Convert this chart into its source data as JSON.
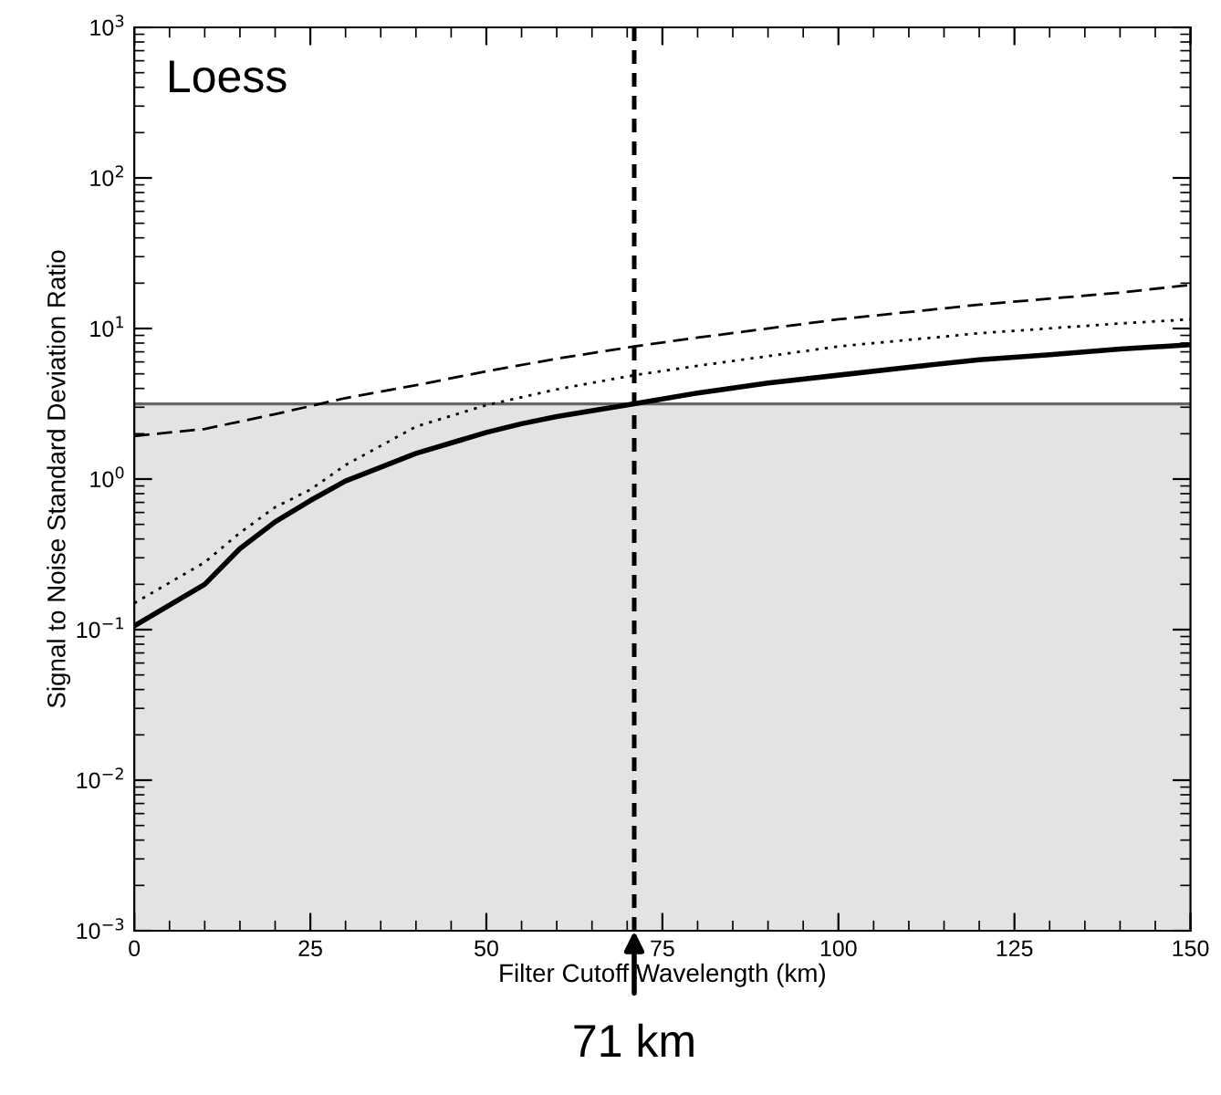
{
  "chart_data": {
    "type": "line",
    "xlabel": "Filter Cutoff Wavelength (km)",
    "ylabel": "Signal to Noise Standard Deviation Ratio",
    "log": "y",
    "xlim": [
      0,
      150
    ],
    "xticks": [
      0,
      25,
      50,
      75,
      100,
      125,
      150
    ],
    "ylim": [
      0.001,
      1000
    ],
    "yticks": [
      {
        "value": 0.001,
        "label": "10$^{−3}$"
      },
      {
        "value": 0.01,
        "label": "10$^{−2}$"
      },
      {
        "value": 0.1,
        "label": "10$^{−1}$"
      },
      {
        "value": 1,
        "label": "10$^{0}$"
      },
      {
        "value": 10,
        "label": "10$^{1}$"
      },
      {
        "value": 100,
        "label": "10$^{2}$"
      },
      {
        "value": 1000,
        "label": "10$^{3}$"
      }
    ],
    "grid": false,
    "legend": false,
    "series": [
      {
        "color": "#000000",
        "line_style": "solid",
        "x": [
          0,
          10,
          15,
          20,
          25,
          30,
          40,
          50,
          55,
          60,
          71,
          80,
          90,
          100,
          110,
          120,
          130,
          140,
          150
        ],
        "values": [
          0.106,
          0.2,
          0.345,
          0.52,
          0.72,
          0.97,
          1.48,
          2.04,
          2.33,
          2.6,
          3.16,
          3.73,
          4.35,
          4.9,
          5.53,
          6.2,
          6.7,
          7.3,
          7.8
        ]
      },
      {
        "color": "#000000",
        "line_style": "dotted",
        "x": [
          0,
          10,
          15,
          20,
          25,
          30,
          40,
          50,
          60,
          71,
          80,
          100,
          120,
          140,
          150
        ],
        "values": [
          0.15,
          0.28,
          0.44,
          0.65,
          0.85,
          1.24,
          2.23,
          3.1,
          3.94,
          4.9,
          5.65,
          7.6,
          9.3,
          10.8,
          11.5
        ]
      },
      {
        "color": "#000000",
        "line_style": "dashed",
        "x": [
          0,
          10,
          20,
          30,
          40,
          50,
          60,
          71,
          80,
          100,
          120,
          140,
          150
        ],
        "values": [
          1.93,
          2.15,
          2.7,
          3.45,
          4.2,
          5.2,
          6.3,
          7.6,
          8.7,
          11.5,
          14.4,
          17.3,
          19.5
        ]
      }
    ],
    "bands": [
      {
        "axis": "y",
        "from": 0.001,
        "to": 3.16,
        "color": "#e3e3e3"
      }
    ],
    "ref_lines": [
      {
        "axis": "y",
        "value": 3.16,
        "color": "#666666",
        "line_style": "solid"
      },
      {
        "axis": "x",
        "value": 71,
        "color": "#000000",
        "line_style": "dashed"
      }
    ],
    "annotations": [
      "Loess",
      {
        "text": "71 km",
        "x": 71,
        "y": 0.001
      }
    ]
  }
}
